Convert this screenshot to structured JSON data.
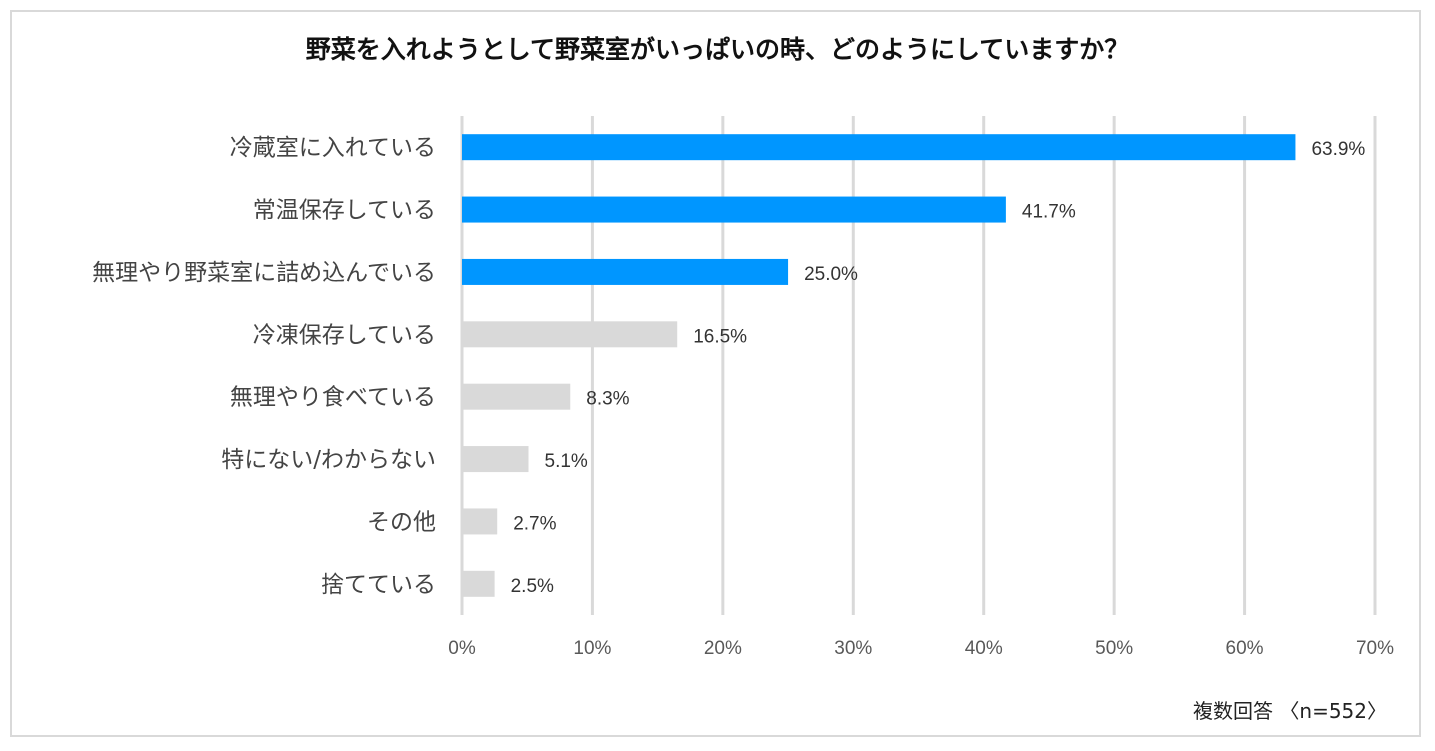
{
  "chart_data": {
    "type": "bar",
    "orientation": "horizontal",
    "title": "野菜を入れようとして野菜室がいっぱいの時、どのようにしていますか？",
    "categories": [
      "冷蔵室に入れている",
      "常温保存している",
      "無理やり野菜室に詰め込んでいる",
      "冷凍保存している",
      "無理やり食べている",
      "特にない/わからない",
      "その他",
      "捨てている"
    ],
    "values": [
      63.9,
      41.7,
      25.0,
      16.5,
      8.3,
      5.1,
      2.7,
      2.5
    ],
    "value_labels": [
      "63.9%",
      "41.7%",
      "25.0%",
      "16.5%",
      "8.3%",
      "5.1%",
      "2.7%",
      "2.5%"
    ],
    "highlighted": [
      true,
      true,
      true,
      false,
      false,
      false,
      false,
      false
    ],
    "x_ticks": [
      "0%",
      "10%",
      "20%",
      "30%",
      "40%",
      "50%",
      "60%",
      "70%"
    ],
    "xlim": [
      0,
      70
    ],
    "grid": true,
    "colors": {
      "highlight": "#0096ff",
      "other": "#d9d9d9",
      "grid": "#d9d9d9"
    },
    "note": "複数回答 〈n=552〉"
  }
}
